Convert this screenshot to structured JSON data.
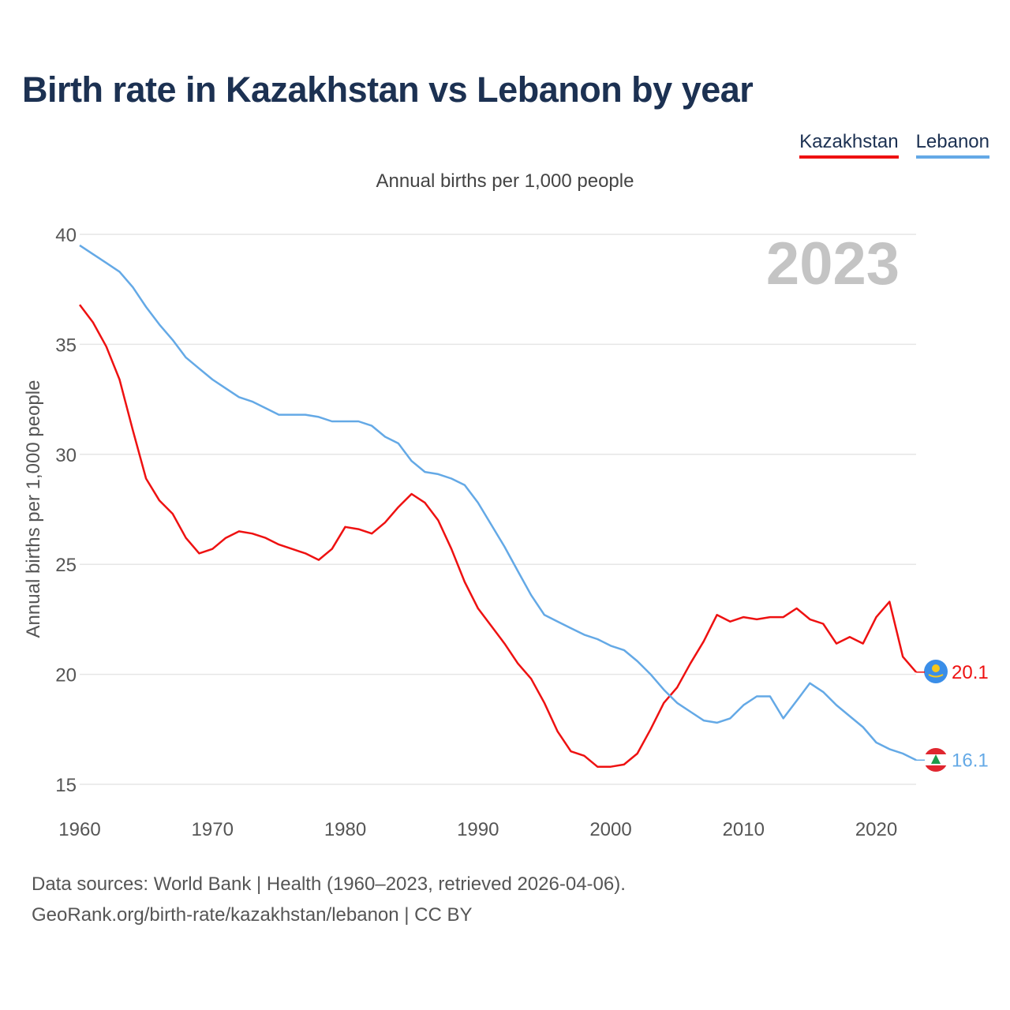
{
  "title": "Birth rate in Kazakhstan vs Lebanon by year",
  "subtitle": "Annual births per 1,000 people",
  "legend": [
    {
      "name": "Kazakhstan",
      "color": "#ee1111"
    },
    {
      "name": "Lebanon",
      "color": "#64a9e6"
    }
  ],
  "year_label": "2023",
  "footer": {
    "sources": "Data sources: World Bank | Health (1960–2023, retrieved 2026-04-06).",
    "attribution": "GeoRank.org/birth-rate/kazakhstan/lebanon | CC BY"
  },
  "chart_data": {
    "type": "line",
    "title": "Birth rate in Kazakhstan vs Lebanon by year",
    "xlabel": "",
    "ylabel": "Annual births per 1,000 people",
    "xlim": [
      1960,
      2023
    ],
    "ylim": [
      15,
      40
    ],
    "xticks": [
      1960,
      1970,
      1980,
      1990,
      2000,
      2010,
      2020
    ],
    "yticks": [
      15,
      20,
      25,
      30,
      35,
      40
    ],
    "grid": true,
    "legend_position": "top-right",
    "x": [
      1960,
      1961,
      1962,
      1963,
      1964,
      1965,
      1966,
      1967,
      1968,
      1969,
      1970,
      1971,
      1972,
      1973,
      1974,
      1975,
      1976,
      1977,
      1978,
      1979,
      1980,
      1981,
      1982,
      1983,
      1984,
      1985,
      1986,
      1987,
      1988,
      1989,
      1990,
      1991,
      1992,
      1993,
      1994,
      1995,
      1996,
      1997,
      1998,
      1999,
      2000,
      2001,
      2002,
      2003,
      2004,
      2005,
      2006,
      2007,
      2008,
      2009,
      2010,
      2011,
      2012,
      2013,
      2014,
      2015,
      2016,
      2017,
      2018,
      2019,
      2020,
      2021,
      2022,
      2023
    ],
    "series": [
      {
        "name": "Kazakhstan",
        "color": "#ee1111",
        "end_label": "20.1",
        "values": [
          36.8,
          36.0,
          34.9,
          33.4,
          31.1,
          28.9,
          27.9,
          27.3,
          26.2,
          25.5,
          25.7,
          26.2,
          26.5,
          26.4,
          26.2,
          25.9,
          25.7,
          25.5,
          25.2,
          25.7,
          26.7,
          26.6,
          26.4,
          26.9,
          27.6,
          28.2,
          27.8,
          27.0,
          25.7,
          24.2,
          23.0,
          22.2,
          21.4,
          20.5,
          19.8,
          18.7,
          17.4,
          16.5,
          16.3,
          15.8,
          15.8,
          15.9,
          16.4,
          17.5,
          18.7,
          19.4,
          20.5,
          21.5,
          22.7,
          22.4,
          22.6,
          22.5,
          22.6,
          22.6,
          23.0,
          22.5,
          22.3,
          21.4,
          21.7,
          21.4,
          22.6,
          23.3,
          20.8,
          20.1
        ]
      },
      {
        "name": "Lebanon",
        "color": "#64a9e6",
        "end_label": "16.1",
        "values": [
          39.5,
          39.1,
          38.7,
          38.3,
          37.6,
          36.7,
          35.9,
          35.2,
          34.4,
          33.9,
          33.4,
          33.0,
          32.6,
          32.4,
          32.1,
          31.8,
          31.8,
          31.8,
          31.7,
          31.5,
          31.5,
          31.5,
          31.3,
          30.8,
          30.5,
          29.7,
          29.2,
          29.1,
          28.9,
          28.6,
          27.8,
          26.8,
          25.8,
          24.7,
          23.6,
          22.7,
          22.4,
          22.1,
          21.8,
          21.6,
          21.3,
          21.1,
          20.6,
          20.0,
          19.3,
          18.7,
          18.3,
          17.9,
          17.8,
          18.0,
          18.6,
          19.0,
          19.0,
          18.0,
          18.8,
          19.6,
          19.2,
          18.6,
          18.1,
          17.6,
          16.9,
          16.6,
          16.4,
          16.1
        ]
      }
    ]
  }
}
